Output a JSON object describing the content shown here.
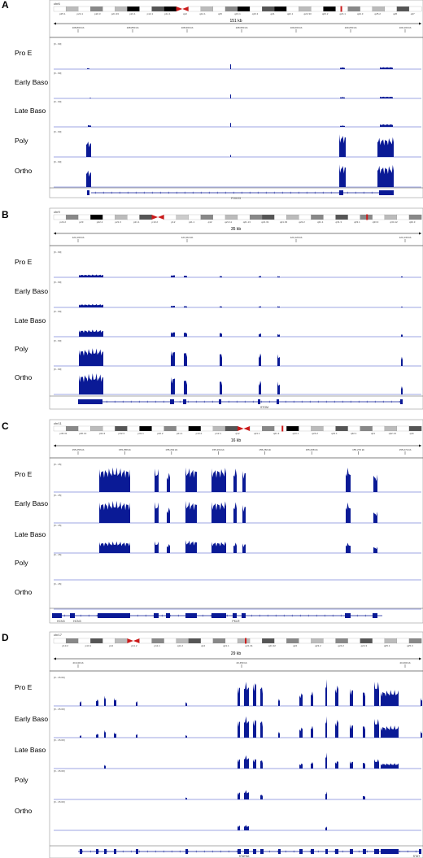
{
  "colors": {
    "track": "#0a1a96",
    "baseline": "#3b4bc8",
    "centromere": "#cc1a1a",
    "gene": "#0a1a96"
  },
  "track_names": [
    "Pro E",
    "Early Baso",
    "Late Baso",
    "Poly",
    "Ortho"
  ],
  "panels": [
    {
      "letter": "A",
      "chromosome": "chr6",
      "span_label": "151 kb",
      "gene_names": [
        "FOXO3"
      ],
      "bands": [
        "p25.1",
        "p24.1",
        "p22.3",
        "p21.33",
        "p21.1",
        "p12.1",
        "p11.1",
        "q12",
        "q14.1",
        "q15",
        "q16.1",
        "q16.3",
        "q21",
        "q22.1",
        "q22.33",
        "q23.2",
        "q24.1",
        "q24.3",
        "q25.2",
        "q26",
        "q27"
      ],
      "ticks": [
        "108,800 kb",
        "108,850 kb",
        "108,900 kb",
        "108,950 kb",
        "109,000 kb",
        "109,050 kb",
        "109,100 kb"
      ],
      "range_label": "[0 - 60]"
    },
    {
      "letter": "B",
      "chromosome": "chr9",
      "span_label": "35 kb",
      "gene_names": [
        "STOM"
      ],
      "bands": [
        "p24.2",
        "p23",
        "p22.2",
        "p21.3",
        "p21.1",
        "p13.2",
        "p12",
        "p11.1",
        "q12",
        "q21.11",
        "q21.13",
        "q21.31",
        "q21.33",
        "q22.2",
        "q31.1",
        "q31.3",
        "q33.1",
        "q33.3",
        "q34.12",
        "q34.3"
      ],
      "ticks": [
        "124,100 kb",
        "124,110 kb",
        "124,120 kb",
        "124,130 kb"
      ],
      "range_label": "[0 - 60]"
    },
    {
      "letter": "C",
      "chromosome": "chr11",
      "span_label": "16 kb",
      "gene_names": [
        "HCN3",
        "HCN3",
        "PKLR"
      ],
      "bands": [
        "p36.31",
        "p36.13",
        "p34.3",
        "p32.3",
        "p31.1",
        "p22.2",
        "p21.1",
        "p13.2",
        "p12.1",
        "q12",
        "q21.1",
        "q21.3",
        "q23.1",
        "q24.2",
        "q31.1",
        "q32.1",
        "q41",
        "q42.13",
        "q44"
      ],
      "ticks": [
        "155,255 kb",
        "155,258 kb",
        "155,262 kb",
        "155,264 kb",
        "155,266 kb",
        "155,268 kb",
        "155,270 kb",
        "155,272 kb"
      ],
      "range_label": "[0 - 15]"
    },
    {
      "letter": "D",
      "chromosome": "chr17",
      "span_label": "29 kb",
      "gene_names": [
        "STAT5A",
        "STAT"
      ],
      "bands": [
        "p13.2",
        "p13.1",
        "p12",
        "p11.2",
        "p11.1",
        "q11.2",
        "q12",
        "q21.1",
        "q21.31",
        "q21.32",
        "q22",
        "q23.2",
        "q24.2",
        "q24.3",
        "q25.1",
        "q25.3"
      ],
      "ticks": [
        "40,440 kb",
        "40,450 kb",
        "40,460 kb"
      ],
      "range_label": "[0 - 15.00]"
    }
  ]
}
